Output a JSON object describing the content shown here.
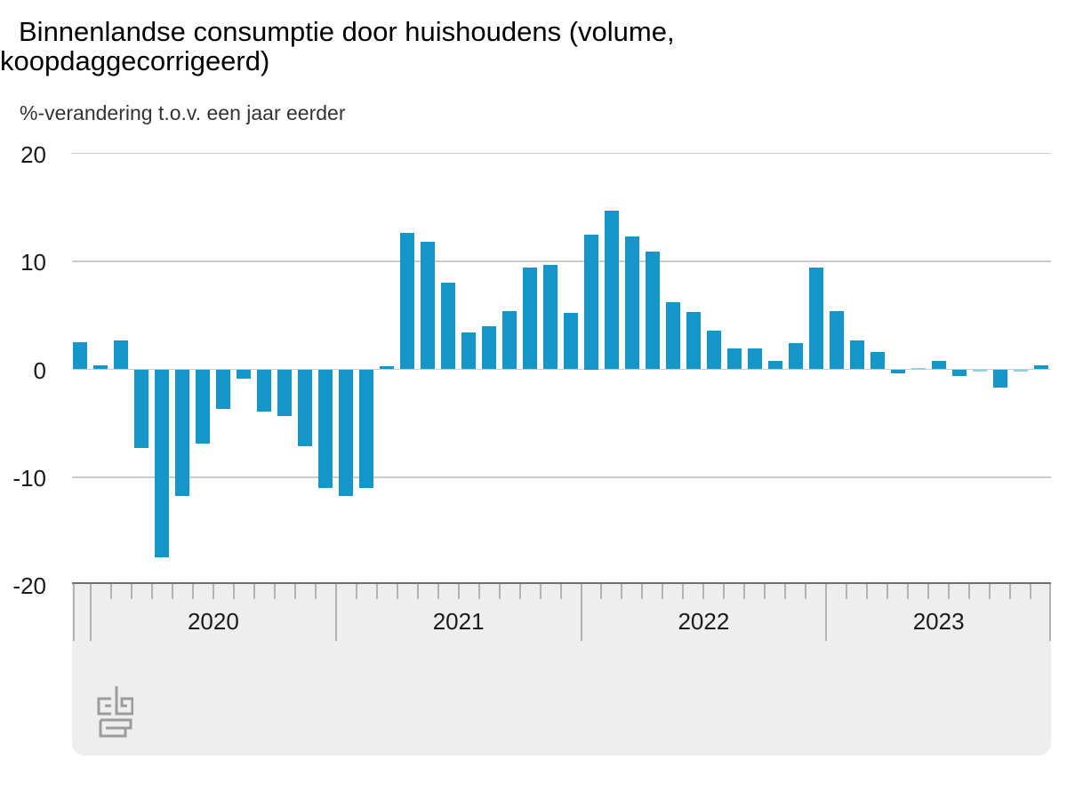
{
  "header": {
    "title": "Binnenlandse consumptie door huishoudens (volume, koopdaggecorrigeerd)",
    "title_line1": "Binnenlandse consumptie door huishoudens (volume,",
    "title_line2": "koopdaggecorrigeerd)",
    "subtitle": "%-verandering t.o.v. een jaar eerder"
  },
  "chart_data": {
    "type": "bar",
    "title": "Binnenlandse consumptie door huishoudens (volume, koopdaggecorrigeerd)",
    "value_label": "%-verandering t.o.v. een jaar eerder",
    "unit": "%",
    "ylim": [
      -20,
      20
    ],
    "yticks": [
      20,
      10,
      0,
      -10,
      -20
    ],
    "grid": true,
    "legend": null,
    "x_year_labels": [
      "2020",
      "2021",
      "2022",
      "2023"
    ],
    "categories": [
      "2019-12",
      "2020-01",
      "2020-02",
      "2020-03",
      "2020-04",
      "2020-05",
      "2020-06",
      "2020-07",
      "2020-08",
      "2020-09",
      "2020-10",
      "2020-11",
      "2020-12",
      "2021-01",
      "2021-02",
      "2021-03",
      "2021-04",
      "2021-05",
      "2021-06",
      "2021-07",
      "2021-08",
      "2021-09",
      "2021-10",
      "2021-11",
      "2021-12",
      "2022-01",
      "2022-02",
      "2022-03",
      "2022-04",
      "2022-05",
      "2022-06",
      "2022-07",
      "2022-08",
      "2022-09",
      "2022-10",
      "2022-11",
      "2022-12",
      "2023-01",
      "2023-02",
      "2023-03",
      "2023-04",
      "2023-05",
      "2023-06",
      "2023-07",
      "2023-08",
      "2023-09",
      "2023-10",
      "2023-11"
    ],
    "values": [
      2.5,
      0.4,
      2.7,
      -7.3,
      -17.4,
      -11.7,
      -6.9,
      -3.7,
      -0.9,
      -3.9,
      -4.3,
      -7.1,
      -11.0,
      -11.7,
      -11.0,
      0.3,
      12.6,
      11.8,
      8.0,
      3.4,
      4.0,
      5.4,
      9.4,
      9.7,
      5.2,
      12.5,
      14.7,
      12.3,
      10.9,
      6.2,
      5.3,
      3.6,
      1.9,
      1.9,
      0.8,
      2.4,
      9.4,
      5.4,
      2.7,
      1.6,
      -0.4,
      0.1,
      0.8,
      -0.6,
      -0.1,
      -1.7,
      -0.1,
      0.4
    ]
  },
  "footer": {
    "logo_icon": "cbs-logo"
  },
  "colors": {
    "bar": "#1497c8",
    "bar_faint": "#8fd0e4",
    "gridline": "#cbcbcb",
    "band_bg": "#eeeeee",
    "band_border": "#6f6f6f",
    "tick": "#b3b3b3",
    "logo": "#9c9c9c",
    "title": "#000000",
    "subtitle": "#333333",
    "axis_label": "#1a1a1a"
  }
}
